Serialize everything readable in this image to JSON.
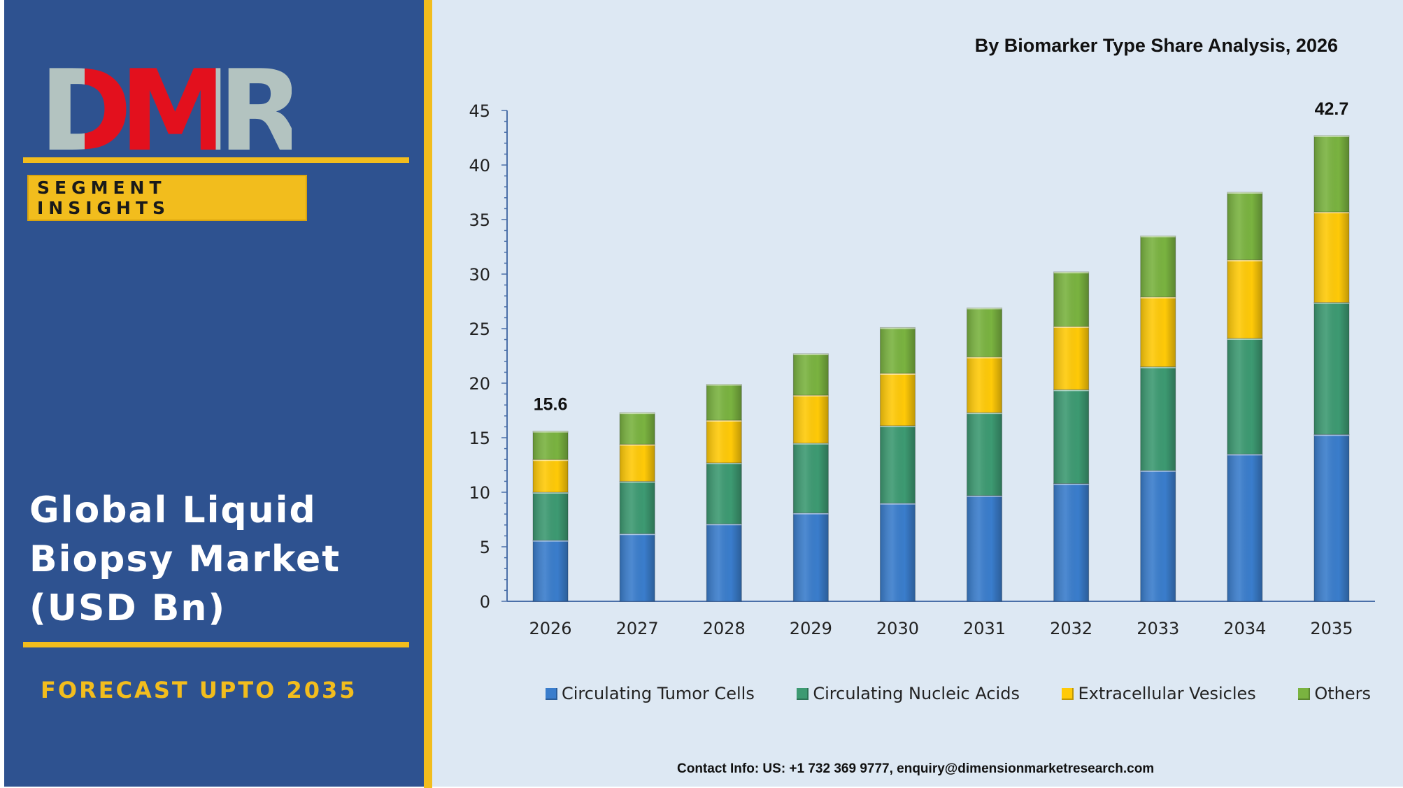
{
  "brand": {
    "logo_text": "DMR",
    "segment_label": "SEGMENT INSIGHTS",
    "market_title_lines": [
      "Global Liquid",
      "Biopsy Market",
      "(USD Bn)"
    ],
    "forecast": "FORECAST UPTO 2035"
  },
  "colors": {
    "panel": "#2e5290",
    "accent": "#f2bd1d",
    "chart_bg": "#dde8f3",
    "logo_red": "#e3101d",
    "logo_grey": "#b3c3c0"
  },
  "contact": "Contact Info: US: +1 732 369 9777, enquiry@dimensionmarketresearch.com",
  "chart_data": {
    "type": "bar",
    "stacked": true,
    "title": "By Biomarker Type Share Analysis, 2026",
    "categories": [
      "2026",
      "2027",
      "2028",
      "2029",
      "2030",
      "2031",
      "2032",
      "2033",
      "2034",
      "2035"
    ],
    "series": [
      {
        "name": "Circulating Tumor Cells",
        "color": "#3a7dcc",
        "values": [
          5.6,
          6.2,
          7.1,
          8.1,
          9.0,
          9.7,
          10.8,
          12.0,
          13.5,
          15.3
        ]
      },
      {
        "name": "Circulating Nucleic Acids",
        "color": "#3d9a72",
        "values": [
          4.4,
          4.8,
          5.6,
          6.4,
          7.1,
          7.6,
          8.6,
          9.5,
          10.6,
          12.1
        ]
      },
      {
        "name": "Extracellular Vesicles",
        "color": "#ffca08",
        "values": [
          3.0,
          3.4,
          3.9,
          4.4,
          4.8,
          5.1,
          5.8,
          6.4,
          7.2,
          8.3
        ]
      },
      {
        "name": "Others",
        "color": "#7ab340",
        "values": [
          2.6,
          2.9,
          3.3,
          3.8,
          4.2,
          4.5,
          5.0,
          5.6,
          6.2,
          7.0
        ]
      }
    ],
    "ylim": [
      0,
      45
    ],
    "yticks": [
      0,
      5,
      10,
      15,
      20,
      25,
      30,
      35,
      40,
      45
    ],
    "data_labels": [
      {
        "category": "2026",
        "text": "15.6"
      },
      {
        "category": "2035",
        "text": "42.7"
      }
    ],
    "grid": false,
    "legend_position": "bottom"
  }
}
